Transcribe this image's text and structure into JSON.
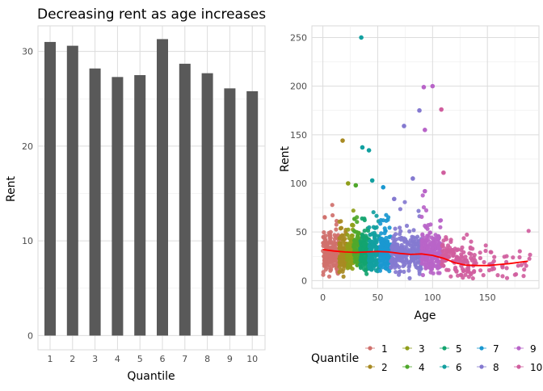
{
  "chart_data": [
    {
      "type": "bar",
      "title": "Decreasing rent as age increases",
      "xlabel": "Quantile",
      "ylabel": "Rent",
      "categories": [
        "1",
        "2",
        "3",
        "4",
        "5",
        "6",
        "7",
        "8",
        "9",
        "10"
      ],
      "values": [
        31.0,
        30.6,
        28.2,
        27.3,
        27.5,
        31.3,
        28.7,
        27.7,
        26.1,
        25.8
      ],
      "ylim": [
        -1.5,
        32.7
      ],
      "yticks": [
        0,
        10,
        20,
        30
      ],
      "grid": true,
      "bar_color": "#595959"
    },
    {
      "type": "scatter",
      "title": "",
      "xlabel": "Age",
      "ylabel": "Rent",
      "xlim": [
        -10,
        197
      ],
      "ylim": [
        -8,
        262
      ],
      "xticks": [
        0,
        50,
        100,
        150
      ],
      "yticks": [
        0,
        50,
        100,
        150,
        200,
        250
      ],
      "grid": true,
      "legend_position": "bottom",
      "legend_title": "Quantile",
      "series": [
        {
          "name": "1",
          "color": "#D0706C",
          "x_range": [
            0,
            15
          ]
        },
        {
          "name": "2",
          "color": "#A88A22",
          "x_range": [
            15,
            22
          ]
        },
        {
          "name": "3",
          "color": "#8F9E1A",
          "x_range": [
            22,
            28
          ]
        },
        {
          "name": "4",
          "color": "#4FA82B",
          "x_range": [
            28,
            34
          ]
        },
        {
          "name": "5",
          "color": "#13A46F",
          "x_range": [
            34,
            42
          ]
        },
        {
          "name": "6",
          "color": "#12A0A0",
          "x_range": [
            42,
            52
          ]
        },
        {
          "name": "7",
          "color": "#1A98D0",
          "x_range": [
            52,
            62
          ]
        },
        {
          "name": "8",
          "color": "#8479D0",
          "x_range": [
            62,
            90
          ]
        },
        {
          "name": "9",
          "color": "#B864C8",
          "x_range": [
            90,
            108
          ]
        },
        {
          "name": "10",
          "color": "#D05E9E",
          "x_range": [
            108,
            190
          ]
        }
      ],
      "outliers": [
        {
          "x": 35,
          "y": 250,
          "series": "6"
        },
        {
          "x": 18,
          "y": 144,
          "series": "2"
        },
        {
          "x": 36,
          "y": 137,
          "series": "6"
        },
        {
          "x": 42,
          "y": 134,
          "series": "6"
        },
        {
          "x": 74,
          "y": 159,
          "series": "8"
        },
        {
          "x": 88,
          "y": 175,
          "series": "8"
        },
        {
          "x": 92,
          "y": 199,
          "series": "9"
        },
        {
          "x": 100,
          "y": 200,
          "series": "9"
        },
        {
          "x": 108,
          "y": 176,
          "series": "10"
        },
        {
          "x": 93,
          "y": 155,
          "series": "9"
        },
        {
          "x": 82,
          "y": 105,
          "series": "8"
        },
        {
          "x": 110,
          "y": 111,
          "series": "10"
        },
        {
          "x": 23,
          "y": 100,
          "series": "3"
        },
        {
          "x": 30,
          "y": 98,
          "series": "4"
        },
        {
          "x": 45,
          "y": 103,
          "series": "6"
        },
        {
          "x": 55,
          "y": 96,
          "series": "7"
        },
        {
          "x": 65,
          "y": 84,
          "series": "8"
        },
        {
          "x": 93,
          "y": 92,
          "series": "9"
        }
      ],
      "trend": {
        "name": "smooth",
        "color": "#FF0000",
        "x": [
          0,
          10,
          20,
          30,
          40,
          50,
          60,
          70,
          80,
          90,
          100,
          110,
          120,
          130,
          140,
          150,
          160,
          170,
          180,
          187
        ],
        "y": [
          32,
          30.5,
          29.5,
          29,
          29.5,
          30,
          29.5,
          28,
          27,
          27.5,
          26,
          23,
          18.5,
          16,
          15.5,
          15.5,
          16.5,
          17.5,
          19,
          20
        ]
      }
    }
  ]
}
